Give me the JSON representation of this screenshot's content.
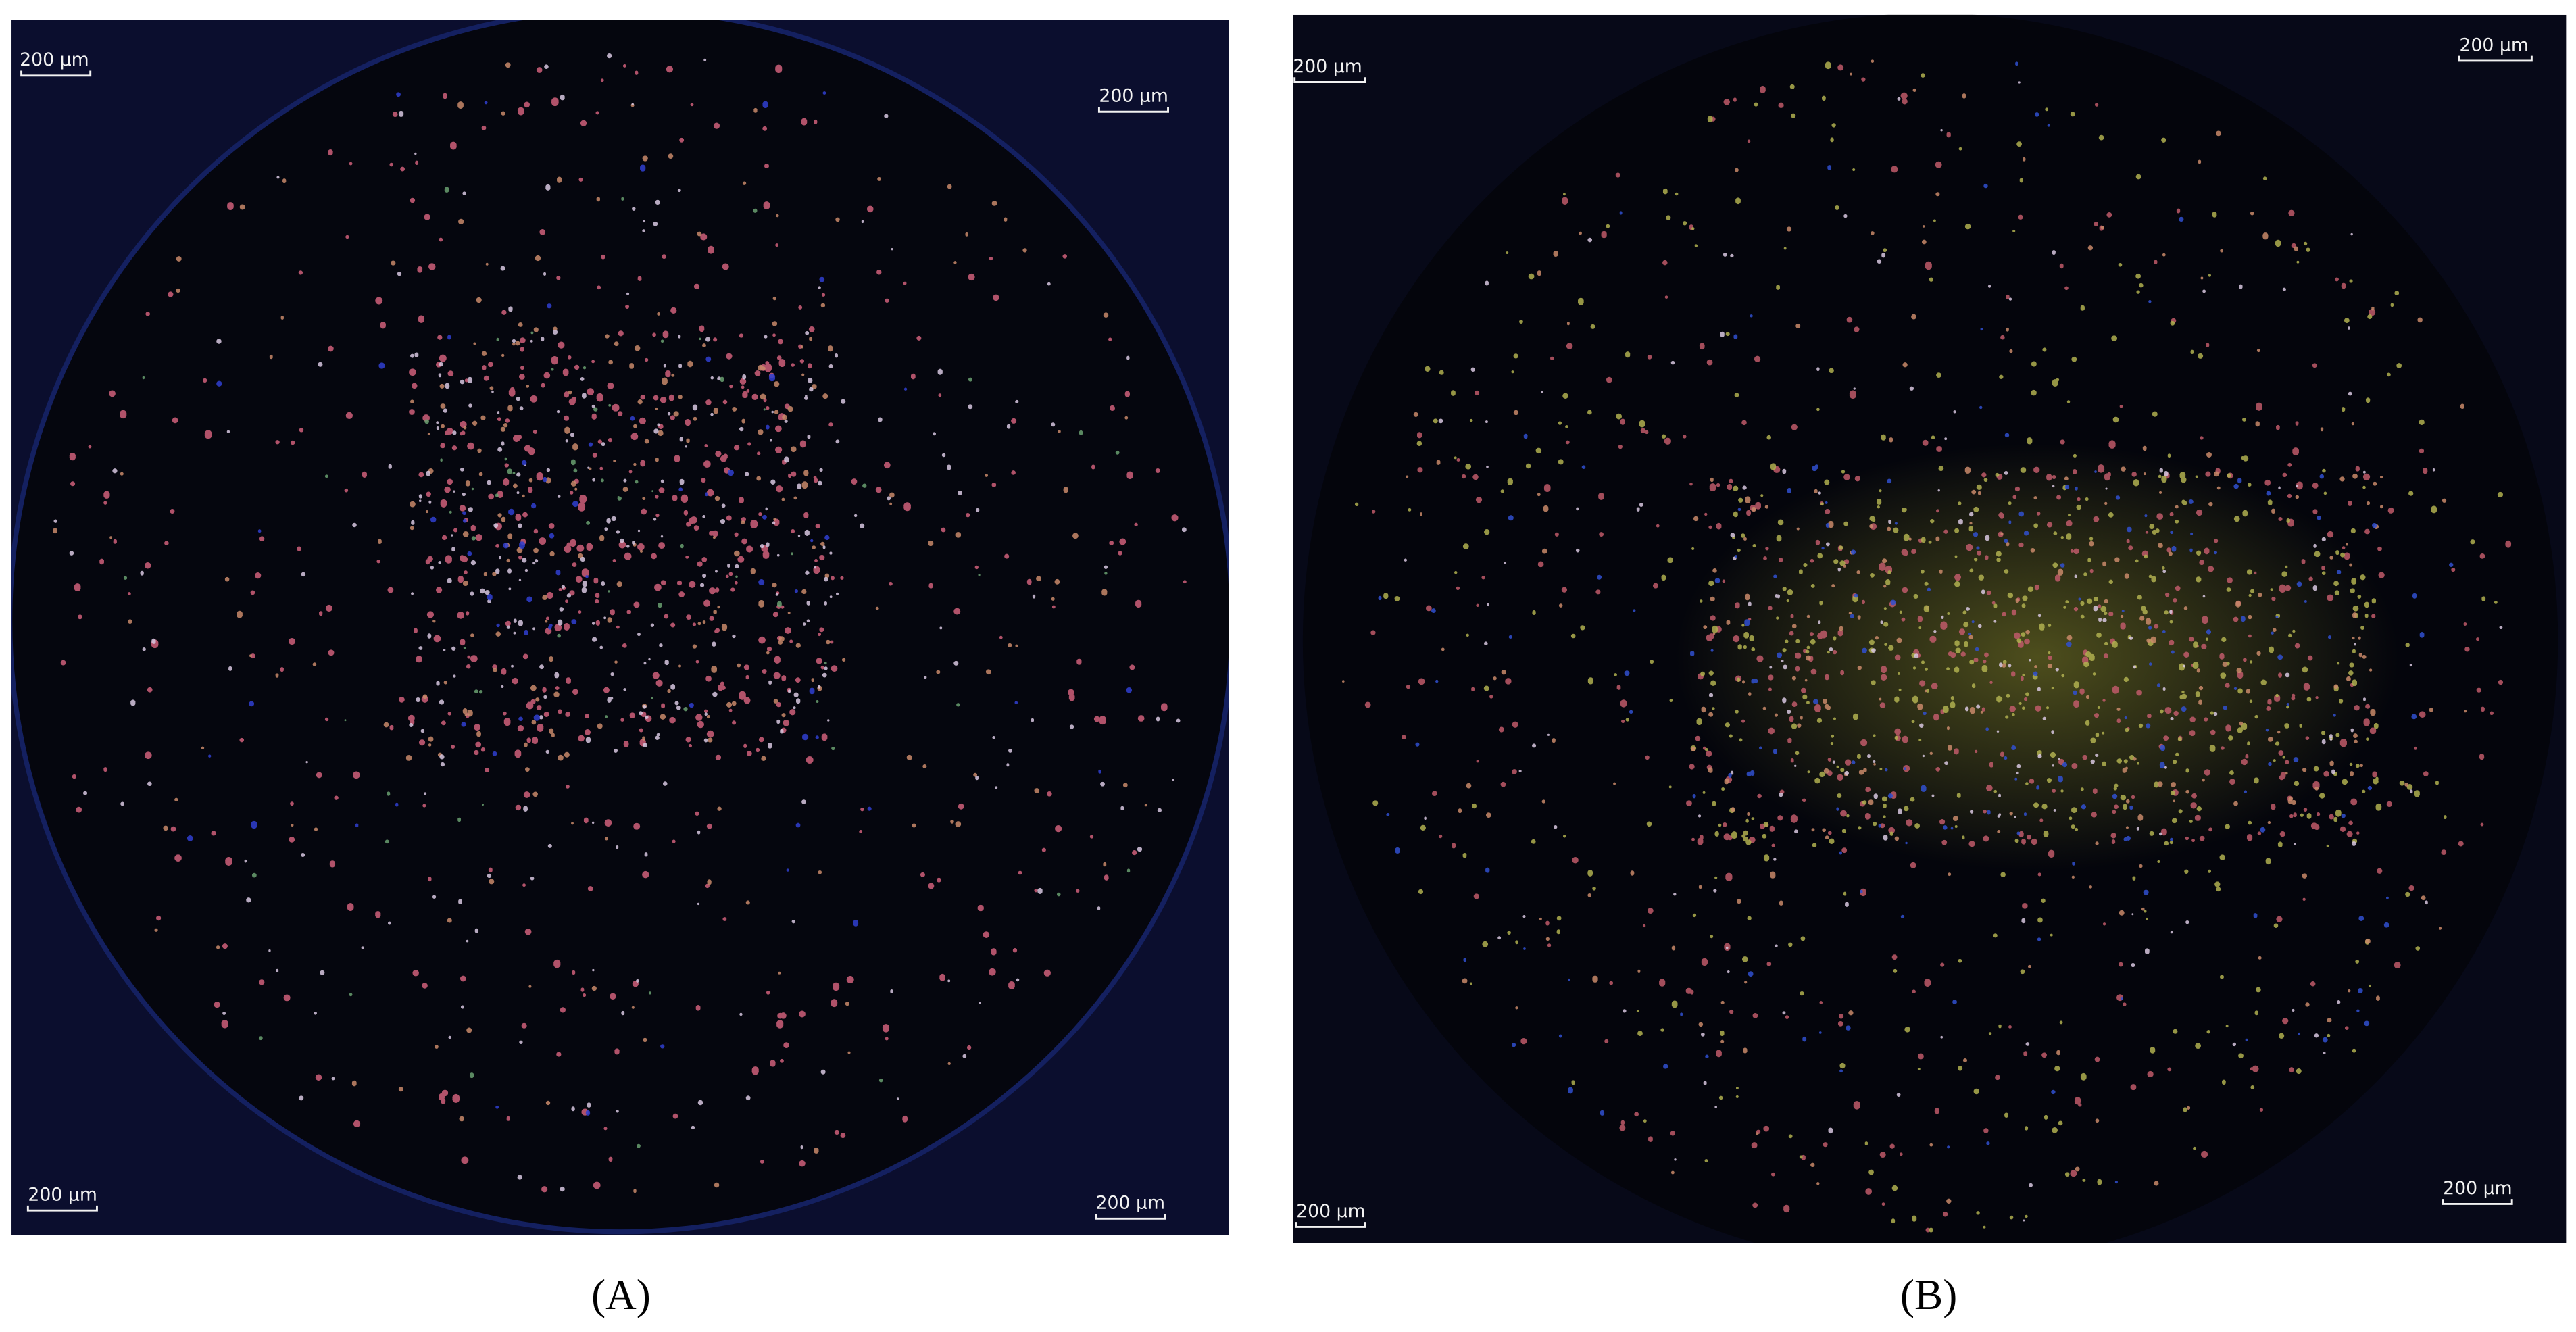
{
  "panels": [
    {
      "label": "(A)",
      "scale_bars": [
        "200 µm",
        "200 µm",
        "200 µm",
        "200 µm"
      ]
    },
    {
      "label": "(B)",
      "scale_bars": [
        "200 µm",
        "200 µm",
        "200 µm",
        "200 µm"
      ]
    }
  ]
}
